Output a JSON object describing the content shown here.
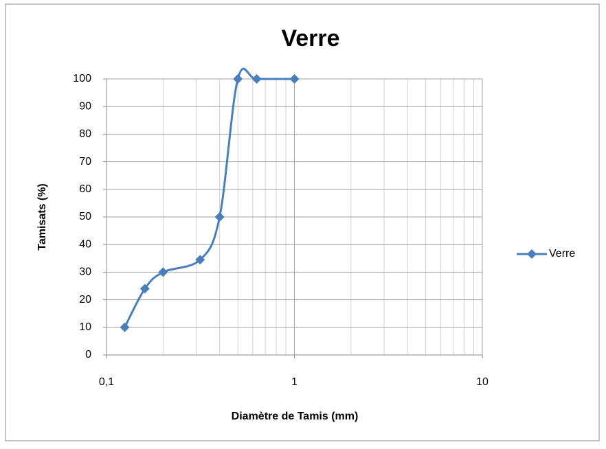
{
  "chart_data": {
    "type": "line",
    "title": "Verre",
    "x_label": "Diamètre de Tamis (mm)",
    "y_label": "Tamisats (%)",
    "x": [
      0.125,
      0.16,
      0.2,
      0.315,
      0.4,
      0.5,
      0.63,
      1
    ],
    "series": [
      {
        "name": "Verre",
        "color": "#4a7ebb",
        "values": [
          10,
          24,
          30,
          34.5,
          50,
          100,
          100,
          100
        ]
      }
    ],
    "xlim": [
      0.1,
      10
    ],
    "xticks": [
      {
        "value": 0.1,
        "label": "0,1"
      },
      1,
      10
    ],
    "x_log": true,
    "ylim": [
      0,
      100
    ],
    "yticks": [
      0,
      10,
      20,
      30,
      40,
      50,
      60,
      70,
      80,
      90,
      100
    ],
    "grid": true,
    "minor_grid": true,
    "smooth": true,
    "legend": "right"
  }
}
